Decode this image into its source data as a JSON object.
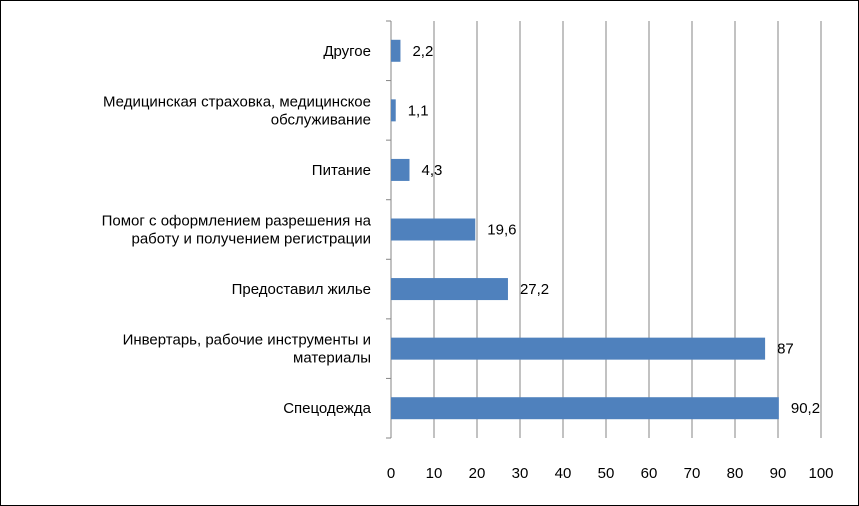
{
  "chart_data": {
    "type": "bar",
    "orientation": "horizontal",
    "categories": [
      [
        "Спецодежда"
      ],
      [
        "Инвертарь, рабочие инструменты и",
        "материалы"
      ],
      [
        "Предоставил жилье"
      ],
      [
        "Помог с оформлением разрешения на",
        "работу и получением регистрации"
      ],
      [
        "Питание"
      ],
      [
        "Медицинская страховка, медицинское",
        "обслуживание"
      ],
      [
        "Другое"
      ]
    ],
    "values": [
      90.2,
      87,
      27.2,
      19.6,
      4.3,
      1.1,
      2.2
    ],
    "value_labels": [
      "90,2",
      "87",
      "27,2",
      "19,6",
      "4,3",
      "1,1",
      "2,2"
    ],
    "title": "",
    "xlabel": "",
    "ylabel": "",
    "xlim": [
      0,
      100
    ],
    "xticks": [
      0,
      10,
      20,
      30,
      40,
      50,
      60,
      70,
      80,
      90,
      100
    ],
    "grid": "vertical",
    "legend": "none",
    "bar_color": "#4F81BD",
    "grid_color": "#868686"
  }
}
